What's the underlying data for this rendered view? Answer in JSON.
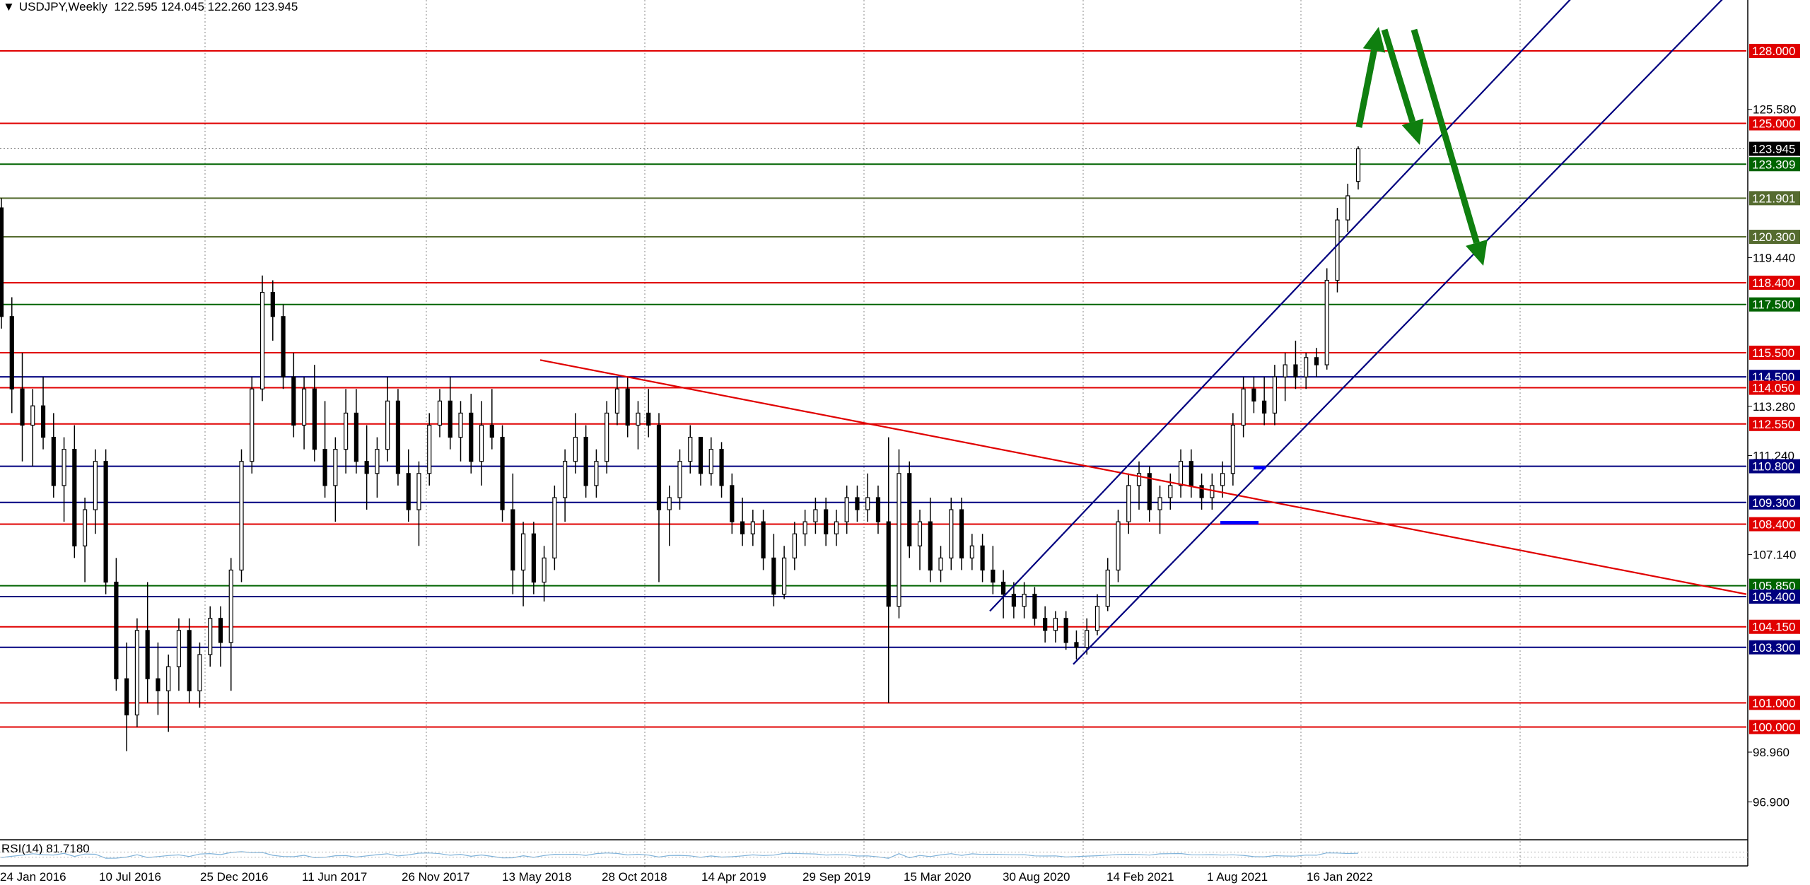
{
  "header": {
    "symbol": "USDJPY,Weekly",
    "ohlc": "122.595 124.045 122.260 123.945"
  },
  "colors": {
    "red": "#e00000",
    "green": "#006400",
    "olive": "#556b2f",
    "navy": "#00007f",
    "arrow": "#0f7f0f",
    "candle": "#000000",
    "rsi": "#7fb2d9",
    "blue_mark": "#0000ff"
  },
  "chart_data": {
    "type": "candlestick",
    "instrument": "USDJPY",
    "timeframe": "Weekly",
    "ylim": [
      95.6,
      130.5
    ],
    "y_ticks": [
      "125.580",
      "119.440",
      "113.280",
      "111.240",
      "107.140",
      "98.960",
      "96.900"
    ],
    "x_ticks": [
      "24 Jan 2016",
      "10 Jul 2016",
      "25 Dec 2016",
      "11 Jun 2017",
      "26 Nov 2017",
      "13 May 2018",
      "28 Oct 2018",
      "14 Apr 2019",
      "29 Sep 2019",
      "15 Mar 2020",
      "30 Aug 2020",
      "14 Feb 2021",
      "1 Aug 2021",
      "16 Jan 2022"
    ],
    "last_price": {
      "value": 123.945,
      "label": "123.945"
    },
    "horizontal_levels": [
      {
        "value": 128.0,
        "label": "128.000",
        "color": "red"
      },
      {
        "value": 125.0,
        "label": "125.000",
        "color": "red"
      },
      {
        "value": 123.309,
        "label": "123.309",
        "color": "green"
      },
      {
        "value": 121.901,
        "label": "121.901",
        "color": "olive"
      },
      {
        "value": 120.3,
        "label": "120.300",
        "color": "olive"
      },
      {
        "value": 118.4,
        "label": "118.400",
        "color": "red"
      },
      {
        "value": 117.5,
        "label": "117.500",
        "color": "green"
      },
      {
        "value": 115.5,
        "label": "115.500",
        "color": "red"
      },
      {
        "value": 114.5,
        "label": "114.500",
        "color": "navy"
      },
      {
        "value": 114.05,
        "label": "114.050",
        "color": "red"
      },
      {
        "value": 112.55,
        "label": "112.550",
        "color": "red"
      },
      {
        "value": 110.8,
        "label": "110.800",
        "color": "navy"
      },
      {
        "value": 109.3,
        "label": "109.300",
        "color": "navy"
      },
      {
        "value": 108.4,
        "label": "108.400",
        "color": "red"
      },
      {
        "value": 105.85,
        "label": "105.850",
        "color": "green"
      },
      {
        "value": 105.4,
        "label": "105.400",
        "color": "navy"
      },
      {
        "value": 104.15,
        "label": "104.150",
        "color": "red"
      },
      {
        "value": 103.3,
        "label": "103.300",
        "color": "navy"
      },
      {
        "value": 101.0,
        "label": "101.000",
        "color": "red"
      },
      {
        "value": 100.0,
        "label": "100.000",
        "color": "red"
      }
    ],
    "rsi": {
      "label": "RSI(14) 81.7180",
      "period": 14,
      "value": 81.718
    },
    "candles": [
      {
        "o": 121.5,
        "h": 121.9,
        "l": 116.5,
        "c": 117.0
      },
      {
        "o": 117.0,
        "h": 117.8,
        "l": 113.0,
        "c": 114.0
      },
      {
        "o": 114.0,
        "h": 115.5,
        "l": 111.0,
        "c": 112.5
      },
      {
        "o": 112.5,
        "h": 114.0,
        "l": 110.8,
        "c": 113.3
      },
      {
        "o": 113.3,
        "h": 114.5,
        "l": 111.5,
        "c": 112.0
      },
      {
        "o": 112.0,
        "h": 113.0,
        "l": 109.5,
        "c": 110.0
      },
      {
        "o": 110.0,
        "h": 112.0,
        "l": 108.5,
        "c": 111.5
      },
      {
        "o": 111.5,
        "h": 112.5,
        "l": 107.0,
        "c": 107.5
      },
      {
        "o": 107.5,
        "h": 109.5,
        "l": 106.0,
        "c": 109.0
      },
      {
        "o": 109.0,
        "h": 111.5,
        "l": 108.0,
        "c": 111.0
      },
      {
        "o": 111.0,
        "h": 111.5,
        "l": 105.5,
        "c": 106.0
      },
      {
        "o": 106.0,
        "h": 107.0,
        "l": 101.5,
        "c": 102.0
      },
      {
        "o": 102.0,
        "h": 103.5,
        "l": 99.0,
        "c": 100.5
      },
      {
        "o": 100.5,
        "h": 104.5,
        "l": 100.0,
        "c": 104.0
      },
      {
        "o": 104.0,
        "h": 106.0,
        "l": 101.0,
        "c": 102.0
      },
      {
        "o": 102.0,
        "h": 103.5,
        "l": 100.5,
        "c": 101.5
      },
      {
        "o": 101.5,
        "h": 103.0,
        "l": 99.8,
        "c": 102.5
      },
      {
        "o": 102.5,
        "h": 104.5,
        "l": 101.5,
        "c": 104.0
      },
      {
        "o": 104.0,
        "h": 104.5,
        "l": 101.0,
        "c": 101.5
      },
      {
        "o": 101.5,
        "h": 103.5,
        "l": 100.8,
        "c": 103.0
      },
      {
        "o": 103.0,
        "h": 105.0,
        "l": 102.5,
        "c": 104.5
      },
      {
        "o": 104.5,
        "h": 105.0,
        "l": 102.5,
        "c": 103.5
      },
      {
        "o": 103.5,
        "h": 107.0,
        "l": 101.5,
        "c": 106.5
      },
      {
        "o": 106.5,
        "h": 111.5,
        "l": 106.0,
        "c": 111.0
      },
      {
        "o": 111.0,
        "h": 114.5,
        "l": 110.5,
        "c": 114.0
      },
      {
        "o": 114.0,
        "h": 118.7,
        "l": 113.5,
        "c": 118.0
      },
      {
        "o": 118.0,
        "h": 118.5,
        "l": 116.0,
        "c": 117.0
      },
      {
        "o": 117.0,
        "h": 117.5,
        "l": 114.0,
        "c": 114.5
      },
      {
        "o": 114.5,
        "h": 115.5,
        "l": 112.0,
        "c": 112.5
      },
      {
        "o": 112.5,
        "h": 114.5,
        "l": 111.5,
        "c": 114.0
      },
      {
        "o": 114.0,
        "h": 115.0,
        "l": 111.0,
        "c": 111.5
      },
      {
        "o": 111.5,
        "h": 113.5,
        "l": 109.5,
        "c": 110.0
      },
      {
        "o": 110.0,
        "h": 112.0,
        "l": 108.5,
        "c": 111.5
      },
      {
        "o": 111.5,
        "h": 114.0,
        "l": 110.5,
        "c": 113.0
      },
      {
        "o": 113.0,
        "h": 114.0,
        "l": 110.5,
        "c": 111.0
      },
      {
        "o": 111.0,
        "h": 112.5,
        "l": 109.0,
        "c": 110.5
      },
      {
        "o": 110.5,
        "h": 112.0,
        "l": 109.5,
        "c": 111.5
      },
      {
        "o": 111.5,
        "h": 114.5,
        "l": 111.0,
        "c": 113.5
      },
      {
        "o": 113.5,
        "h": 114.0,
        "l": 110.0,
        "c": 110.5
      },
      {
        "o": 110.5,
        "h": 111.5,
        "l": 108.5,
        "c": 109.0
      },
      {
        "o": 109.0,
        "h": 111.0,
        "l": 107.5,
        "c": 110.5
      },
      {
        "o": 110.5,
        "h": 113.0,
        "l": 110.0,
        "c": 112.5
      },
      {
        "o": 112.5,
        "h": 114.0,
        "l": 112.0,
        "c": 113.5
      },
      {
        "o": 113.5,
        "h": 114.5,
        "l": 111.5,
        "c": 112.0
      },
      {
        "o": 112.0,
        "h": 113.5,
        "l": 111.0,
        "c": 113.0
      },
      {
        "o": 113.0,
        "h": 113.8,
        "l": 110.5,
        "c": 111.0
      },
      {
        "o": 111.0,
        "h": 113.5,
        "l": 110.0,
        "c": 112.5
      },
      {
        "o": 112.5,
        "h": 114.0,
        "l": 111.5,
        "c": 112.0
      },
      {
        "o": 112.0,
        "h": 112.5,
        "l": 108.5,
        "c": 109.0
      },
      {
        "o": 109.0,
        "h": 110.5,
        "l": 105.5,
        "c": 106.5
      },
      {
        "o": 106.5,
        "h": 108.5,
        "l": 105.0,
        "c": 108.0
      },
      {
        "o": 108.0,
        "h": 108.5,
        "l": 105.5,
        "c": 106.0
      },
      {
        "o": 106.0,
        "h": 107.5,
        "l": 105.2,
        "c": 107.0
      },
      {
        "o": 107.0,
        "h": 110.0,
        "l": 106.5,
        "c": 109.5
      },
      {
        "o": 109.5,
        "h": 111.5,
        "l": 108.5,
        "c": 111.0
      },
      {
        "o": 111.0,
        "h": 113.0,
        "l": 110.5,
        "c": 112.0
      },
      {
        "o": 112.0,
        "h": 112.5,
        "l": 109.5,
        "c": 110.0
      },
      {
        "o": 110.0,
        "h": 111.5,
        "l": 109.5,
        "c": 111.0
      },
      {
        "o": 111.0,
        "h": 113.5,
        "l": 110.5,
        "c": 113.0
      },
      {
        "o": 113.0,
        "h": 114.5,
        "l": 112.5,
        "c": 114.0
      },
      {
        "o": 114.0,
        "h": 114.5,
        "l": 112.0,
        "c": 112.5
      },
      {
        "o": 112.5,
        "h": 113.5,
        "l": 111.5,
        "c": 113.0
      },
      {
        "o": 113.0,
        "h": 114.0,
        "l": 112.0,
        "c": 112.5
      },
      {
        "o": 112.5,
        "h": 113.0,
        "l": 106.0,
        "c": 109.0
      },
      {
        "o": 109.0,
        "h": 110.0,
        "l": 107.5,
        "c": 109.5
      },
      {
        "o": 109.5,
        "h": 111.5,
        "l": 109.0,
        "c": 111.0
      },
      {
        "o": 111.0,
        "h": 112.5,
        "l": 110.5,
        "c": 112.0
      },
      {
        "o": 112.0,
        "h": 112.0,
        "l": 110.0,
        "c": 110.5
      },
      {
        "o": 110.5,
        "h": 112.0,
        "l": 110.0,
        "c": 111.5
      },
      {
        "o": 111.5,
        "h": 111.8,
        "l": 109.5,
        "c": 110.0
      },
      {
        "o": 110.0,
        "h": 110.5,
        "l": 108.0,
        "c": 108.5
      },
      {
        "o": 108.5,
        "h": 109.5,
        "l": 107.5,
        "c": 108.0
      },
      {
        "o": 108.0,
        "h": 109.0,
        "l": 107.5,
        "c": 108.5
      },
      {
        "o": 108.5,
        "h": 109.0,
        "l": 106.5,
        "c": 107.0
      },
      {
        "o": 107.0,
        "h": 108.0,
        "l": 105.0,
        "c": 105.5
      },
      {
        "o": 105.5,
        "h": 107.5,
        "l": 105.3,
        "c": 107.0
      },
      {
        "o": 107.0,
        "h": 108.5,
        "l": 106.5,
        "c": 108.0
      },
      {
        "o": 108.0,
        "h": 109.0,
        "l": 107.5,
        "c": 108.5
      },
      {
        "o": 108.5,
        "h": 109.5,
        "l": 108.0,
        "c": 109.0
      },
      {
        "o": 109.0,
        "h": 109.5,
        "l": 107.5,
        "c": 108.0
      },
      {
        "o": 108.0,
        "h": 109.0,
        "l": 107.5,
        "c": 108.5
      },
      {
        "o": 108.5,
        "h": 110.0,
        "l": 108.0,
        "c": 109.5
      },
      {
        "o": 109.5,
        "h": 110.0,
        "l": 108.5,
        "c": 109.0
      },
      {
        "o": 109.0,
        "h": 110.5,
        "l": 108.5,
        "c": 109.5
      },
      {
        "o": 109.5,
        "h": 110.0,
        "l": 108.0,
        "c": 108.5
      },
      {
        "o": 108.5,
        "h": 112.0,
        "l": 101.0,
        "c": 105.0
      },
      {
        "o": 105.0,
        "h": 111.5,
        "l": 104.5,
        "c": 110.5
      },
      {
        "o": 110.5,
        "h": 111.0,
        "l": 107.0,
        "c": 107.5
      },
      {
        "o": 107.5,
        "h": 109.0,
        "l": 106.5,
        "c": 108.5
      },
      {
        "o": 108.5,
        "h": 109.5,
        "l": 106.0,
        "c": 106.5
      },
      {
        "o": 106.5,
        "h": 107.5,
        "l": 106.0,
        "c": 107.0
      },
      {
        "o": 107.0,
        "h": 109.5,
        "l": 106.5,
        "c": 109.0
      },
      {
        "o": 109.0,
        "h": 109.5,
        "l": 106.5,
        "c": 107.0
      },
      {
        "o": 107.0,
        "h": 108.0,
        "l": 106.5,
        "c": 107.5
      },
      {
        "o": 107.5,
        "h": 108.0,
        "l": 106.0,
        "c": 106.5
      },
      {
        "o": 106.5,
        "h": 107.5,
        "l": 105.5,
        "c": 106.0
      },
      {
        "o": 106.0,
        "h": 106.5,
        "l": 104.5,
        "c": 105.5
      },
      {
        "o": 105.5,
        "h": 106.0,
        "l": 104.5,
        "c": 105.0
      },
      {
        "o": 105.0,
        "h": 106.0,
        "l": 104.5,
        "c": 105.5
      },
      {
        "o": 105.5,
        "h": 105.8,
        "l": 104.2,
        "c": 104.5
      },
      {
        "o": 104.5,
        "h": 105.0,
        "l": 103.5,
        "c": 104.0
      },
      {
        "o": 104.0,
        "h": 104.8,
        "l": 103.5,
        "c": 104.5
      },
      {
        "o": 104.5,
        "h": 104.8,
        "l": 103.2,
        "c": 103.5
      },
      {
        "o": 103.5,
        "h": 104.0,
        "l": 102.8,
        "c": 103.3
      },
      {
        "o": 103.3,
        "h": 104.5,
        "l": 103.0,
        "c": 104.0
      },
      {
        "o": 104.0,
        "h": 105.5,
        "l": 103.8,
        "c": 105.0
      },
      {
        "o": 105.0,
        "h": 107.0,
        "l": 104.8,
        "c": 106.5
      },
      {
        "o": 106.5,
        "h": 109.0,
        "l": 106.0,
        "c": 108.5
      },
      {
        "o": 108.5,
        "h": 110.5,
        "l": 108.0,
        "c": 110.0
      },
      {
        "o": 110.0,
        "h": 111.0,
        "l": 109.0,
        "c": 110.5
      },
      {
        "o": 110.5,
        "h": 110.8,
        "l": 108.5,
        "c": 109.0
      },
      {
        "o": 109.0,
        "h": 110.0,
        "l": 108.0,
        "c": 109.5
      },
      {
        "o": 109.5,
        "h": 110.5,
        "l": 109.0,
        "c": 110.0
      },
      {
        "o": 110.0,
        "h": 111.5,
        "l": 109.5,
        "c": 111.0
      },
      {
        "o": 111.0,
        "h": 111.5,
        "l": 109.5,
        "c": 110.0
      },
      {
        "o": 110.0,
        "h": 110.5,
        "l": 109.0,
        "c": 109.5
      },
      {
        "o": 109.5,
        "h": 110.5,
        "l": 109.0,
        "c": 110.0
      },
      {
        "o": 110.0,
        "h": 111.0,
        "l": 109.5,
        "c": 110.5
      },
      {
        "o": 110.5,
        "h": 113.0,
        "l": 110.0,
        "c": 112.5
      },
      {
        "o": 112.5,
        "h": 114.5,
        "l": 112.0,
        "c": 114.0
      },
      {
        "o": 114.0,
        "h": 114.5,
        "l": 113.0,
        "c": 113.5
      },
      {
        "o": 113.5,
        "h": 114.5,
        "l": 112.5,
        "c": 113.0
      },
      {
        "o": 113.0,
        "h": 115.0,
        "l": 112.5,
        "c": 114.5
      },
      {
        "o": 114.5,
        "h": 115.5,
        "l": 113.5,
        "c": 115.0
      },
      {
        "o": 115.0,
        "h": 116.0,
        "l": 114.0,
        "c": 114.5
      },
      {
        "o": 114.5,
        "h": 115.5,
        "l": 114.0,
        "c": 115.3
      },
      {
        "o": 115.3,
        "h": 115.7,
        "l": 114.5,
        "c": 115.0
      },
      {
        "o": 115.0,
        "h": 119.0,
        "l": 114.8,
        "c": 118.5
      },
      {
        "o": 118.5,
        "h": 121.5,
        "l": 118.0,
        "c": 121.0
      },
      {
        "o": 121.0,
        "h": 122.5,
        "l": 120.5,
        "c": 122.0
      },
      {
        "o": 122.595,
        "h": 124.045,
        "l": 122.26,
        "c": 123.945
      }
    ]
  },
  "drawings": {
    "resistance_trendline": {
      "color": "red",
      "from": {
        "date": "13 May 2018",
        "price": 115.2
      },
      "to": {
        "date": "after 16 Jan 2022",
        "price": 105.5
      }
    },
    "channel_upper": {
      "color": "navy",
      "from": {
        "date": "15 Mar 2020",
        "price": 105.2
      }
    },
    "channel_lower": {
      "color": "navy",
      "from": {
        "date": "30 Aug 2020",
        "price": 102.6
      }
    }
  }
}
